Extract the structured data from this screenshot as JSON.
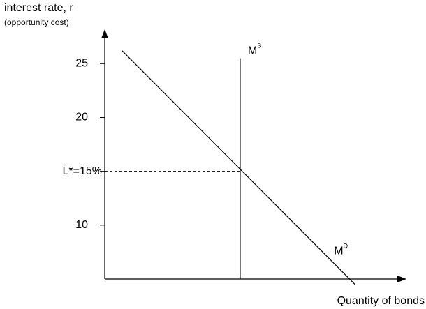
{
  "chart_data": {
    "type": "line",
    "y_label": "interest rate, r",
    "y_sublabel": "(opportunity cost)",
    "x_label": "Quantity of bonds",
    "ylim": [
      5,
      28
    ],
    "yticks": [
      25,
      20,
      {
        "value": 15,
        "label": "L*=15%"
      },
      10
    ],
    "xlim": [
      0,
      100
    ],
    "color": "#000000",
    "series": [
      {
        "name": "M",
        "sup": "S",
        "x": [
          45.1,
          45.1
        ],
        "values": [
          5,
          25.5
        ]
      },
      {
        "name": "M",
        "sup": "D",
        "x": [
          5.8,
          83.3
        ],
        "values": [
          26.2,
          4.5
        ]
      }
    ]
  }
}
